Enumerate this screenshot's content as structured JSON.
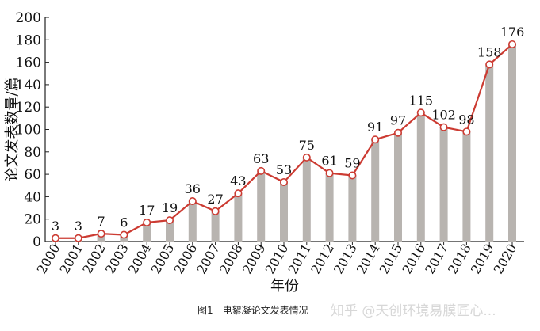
{
  "chart_data": {
    "type": "bar+line",
    "categories": [
      "2000",
      "2001",
      "2002",
      "2003",
      "2004",
      "2005",
      "2006",
      "2007",
      "2008",
      "2009",
      "2010",
      "2011",
      "2012",
      "2013",
      "2014",
      "2015",
      "2016",
      "2017",
      "2018",
      "2019",
      "2020"
    ],
    "values": [
      3,
      3,
      7,
      6,
      17,
      19,
      36,
      27,
      43,
      63,
      53,
      75,
      61,
      59,
      91,
      97,
      115,
      102,
      98,
      158,
      176
    ],
    "xlabel": "年份",
    "ylabel": "论文发表数量/篇",
    "ylim": [
      0,
      200
    ],
    "yticks": [
      0,
      20,
      40,
      60,
      80,
      100,
      120,
      140,
      160,
      180,
      200
    ],
    "grid": false,
    "colors": {
      "bar": "#b8b4b0",
      "line": "#cc3b32",
      "marker_fill": "#ffffff"
    }
  },
  "caption": "图1　电絮凝论文发表情况",
  "watermark": "知乎 @天创环境易膜匠心..."
}
